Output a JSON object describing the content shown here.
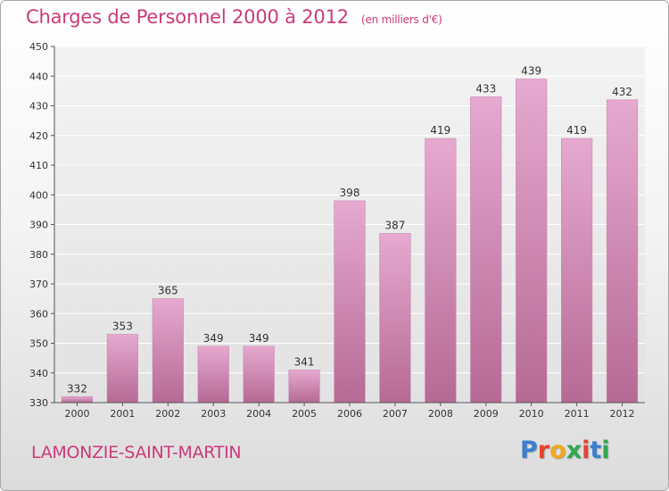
{
  "header": {
    "title": "Charges de Personnel 2000 à 2012",
    "subtitle": "(en milliers d'€)"
  },
  "footer": {
    "commune": "LAMONZIE-SAINT-MARTIN",
    "logo_letters": [
      "P",
      "r",
      "o",
      "x",
      "i",
      "t",
      "i"
    ],
    "logo_colors": [
      "#3b7fd0",
      "#e8442e",
      "#f2a81d",
      "#2fa84f",
      "#e8442e",
      "#3b7fd0",
      "#2fa84f"
    ]
  },
  "chart_data": {
    "type": "bar",
    "title": "Charges de Personnel 2000 à 2012",
    "subtitle": "(en milliers d'€)",
    "xlabel": "",
    "ylabel": "",
    "categories": [
      "2000",
      "2001",
      "2002",
      "2003",
      "2004",
      "2005",
      "2006",
      "2007",
      "2008",
      "2009",
      "2010",
      "2011",
      "2012"
    ],
    "values": [
      332,
      353,
      365,
      349,
      349,
      341,
      398,
      387,
      419,
      433,
      439,
      419,
      432
    ],
    "ylim": [
      330,
      450
    ],
    "yticks": [
      330,
      340,
      350,
      360,
      370,
      380,
      390,
      400,
      410,
      420,
      430,
      440,
      450
    ],
    "grid": true,
    "bar_color_top": "#e6a9d0",
    "bar_color_bottom": "#b56a94",
    "label_color": "#333333"
  }
}
